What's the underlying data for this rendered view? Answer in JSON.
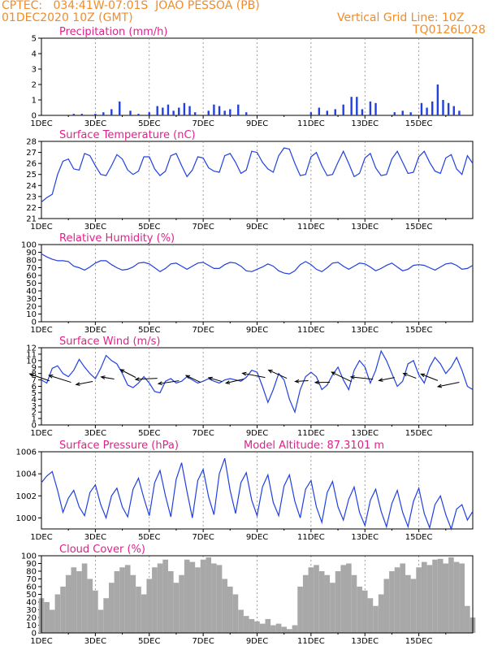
{
  "header": {
    "line1": "CPTEC:   034:41W-07:01S  JOAO PESSOA (PB)",
    "line2": "01DEC2020 10Z (GMT)",
    "grid_note": "Vertical Grid Line: 10Z",
    "model": "TQ0126L028"
  },
  "x_labels": [
    "1DEC",
    "3DEC",
    "5DEC",
    "7DEC",
    "9DEC",
    "11DEC",
    "13DEC",
    "15DEC"
  ],
  "colors": {
    "line": "#2040e0",
    "bar": "#2040e0",
    "cloud": "#a8a8a8",
    "title": "#e0218a",
    "header": "#f28c28"
  },
  "chart_data": [
    {
      "type": "bar",
      "title": "Precipitation (mm/h)",
      "ylim": [
        0,
        5
      ],
      "yticks": [
        0,
        1,
        2,
        3,
        4,
        5
      ],
      "x": [
        1.2,
        1.5,
        2.0,
        2.3,
        2.6,
        2.9,
        3.3,
        3.6,
        4.0,
        4.3,
        4.5,
        4.7,
        4.9,
        5.1,
        5.3,
        5.5,
        5.7,
        6.2,
        6.4,
        6.6,
        6.8,
        7.0,
        7.3,
        7.6,
        10.0,
        10.3,
        10.6,
        10.9,
        11.2,
        11.5,
        11.7,
        11.9,
        12.2,
        12.4,
        13.1,
        13.4,
        13.7,
        14.1,
        14.3,
        14.5,
        14.7,
        14.9,
        15.1,
        15.3,
        15.5
      ],
      "values": [
        0.1,
        0.1,
        0.1,
        0.2,
        0.4,
        0.9,
        0.3,
        0.1,
        0.2,
        0.6,
        0.5,
        0.7,
        0.3,
        0.5,
        0.8,
        0.6,
        0.2,
        0.3,
        0.7,
        0.6,
        0.3,
        0.4,
        0.7,
        0.2,
        0.2,
        0.5,
        0.3,
        0.4,
        0.7,
        1.2,
        1.2,
        0.4,
        0.9,
        0.8,
        0.2,
        0.3,
        0.2,
        0.8,
        0.5,
        0.9,
        2.0,
        1.0,
        0.8,
        0.6,
        0.3
      ]
    },
    {
      "type": "line",
      "title": "Surface Temperature (nC)",
      "ylim": [
        21,
        28
      ],
      "yticks": [
        21,
        22,
        23,
        24,
        25,
        26,
        27,
        28
      ],
      "x": [
        0,
        0.2,
        0.4,
        0.6,
        0.8,
        1.0,
        1.2,
        1.4,
        1.6,
        1.8,
        2.0,
        2.2,
        2.4,
        2.6,
        2.8,
        3.0,
        3.2,
        3.4,
        3.6,
        3.8,
        4.0,
        4.2,
        4.4,
        4.6,
        4.8,
        5.0,
        5.2,
        5.4,
        5.6,
        5.8,
        6.0,
        6.2,
        6.4,
        6.6,
        6.8,
        7.0,
        7.2,
        7.4,
        7.6,
        7.8,
        8.0,
        8.2,
        8.4,
        8.6,
        8.8,
        9.0,
        9.2,
        9.4,
        9.6,
        9.8,
        10.0,
        10.2,
        10.4,
        10.6,
        10.8,
        11.0,
        11.2,
        11.4,
        11.6,
        11.8,
        12.0,
        12.2,
        12.4,
        12.6,
        12.8,
        13.0,
        13.2,
        13.4,
        13.6,
        13.8,
        14.0,
        14.2,
        14.4,
        14.6,
        14.8,
        15.0,
        15.2,
        15.4,
        15.6,
        15.8,
        16.0
      ],
      "values": [
        22.5,
        22.9,
        23.2,
        25.0,
        26.2,
        26.4,
        25.5,
        25.4,
        26.9,
        26.7,
        25.8,
        25.0,
        24.9,
        25.8,
        26.8,
        26.4,
        25.4,
        25.0,
        25.3,
        26.6,
        26.6,
        25.5,
        24.9,
        25.3,
        26.7,
        26.9,
        25.8,
        24.8,
        25.4,
        26.6,
        26.5,
        25.6,
        25.3,
        25.2,
        26.7,
        26.9,
        26.1,
        25.1,
        25.4,
        27.1,
        27.0,
        26.1,
        25.5,
        25.2,
        26.7,
        27.4,
        27.3,
        26.0,
        24.9,
        25.0,
        26.6,
        27.0,
        25.8,
        24.9,
        25.0,
        26.1,
        27.1,
        26.0,
        24.8,
        25.1,
        26.5,
        26.9,
        25.6,
        24.9,
        25.0,
        26.4,
        27.1,
        26.1,
        25.1,
        25.2,
        26.6,
        27.1,
        26.1,
        25.3,
        25.1,
        26.5,
        26.8,
        25.5,
        25.0,
        26.7,
        26.0
      ]
    },
    {
      "type": "line",
      "title": "Relative Humidity (%)",
      "ylim": [
        0,
        100
      ],
      "yticks": [
        0,
        10,
        20,
        30,
        40,
        50,
        60,
        70,
        80,
        90,
        100
      ],
      "x": [
        0,
        0.2,
        0.4,
        0.6,
        0.8,
        1.0,
        1.2,
        1.4,
        1.6,
        1.8,
        2.0,
        2.2,
        2.4,
        2.6,
        2.8,
        3.0,
        3.2,
        3.4,
        3.6,
        3.8,
        4.0,
        4.2,
        4.4,
        4.6,
        4.8,
        5.0,
        5.2,
        5.4,
        5.6,
        5.8,
        6.0,
        6.2,
        6.4,
        6.6,
        6.8,
        7.0,
        7.2,
        7.4,
        7.6,
        7.8,
        8.0,
        8.2,
        8.4,
        8.6,
        8.8,
        9.0,
        9.2,
        9.4,
        9.6,
        9.8,
        10.0,
        10.2,
        10.4,
        10.6,
        10.8,
        11.0,
        11.2,
        11.4,
        11.6,
        11.8,
        12.0,
        12.2,
        12.4,
        12.6,
        12.8,
        13.0,
        13.2,
        13.4,
        13.6,
        13.8,
        14.0,
        14.2,
        14.4,
        14.6,
        14.8,
        15.0,
        15.2,
        15.4,
        15.6,
        15.8,
        16.0
      ],
      "values": [
        88,
        84,
        81,
        79,
        79,
        78,
        72,
        70,
        67,
        71,
        76,
        79,
        79,
        74,
        70,
        67,
        68,
        71,
        76,
        77,
        75,
        70,
        65,
        69,
        75,
        76,
        72,
        68,
        72,
        76,
        77,
        73,
        69,
        69,
        74,
        77,
        76,
        72,
        66,
        65,
        68,
        71,
        75,
        72,
        66,
        63,
        62,
        66,
        74,
        78,
        74,
        68,
        65,
        70,
        76,
        77,
        72,
        68,
        72,
        76,
        75,
        71,
        66,
        69,
        73,
        76,
        71,
        66,
        68,
        73,
        74,
        73,
        70,
        67,
        71,
        75,
        76,
        73,
        68,
        69,
        73
      ]
    },
    {
      "type": "line",
      "title": "Surface Wind (m/s)",
      "ylim": [
        0,
        12
      ],
      "yticks": [
        0,
        1,
        2,
        3,
        4,
        5,
        6,
        7,
        8,
        9,
        10,
        11,
        12
      ],
      "x": [
        0,
        0.2,
        0.4,
        0.6,
        0.8,
        1.0,
        1.2,
        1.4,
        1.6,
        1.8,
        2.0,
        2.2,
        2.4,
        2.6,
        2.8,
        3.0,
        3.2,
        3.4,
        3.6,
        3.8,
        4.0,
        4.2,
        4.4,
        4.6,
        4.8,
        5.0,
        5.2,
        5.4,
        5.6,
        5.8,
        6.0,
        6.2,
        6.4,
        6.6,
        6.8,
        7.0,
        7.2,
        7.4,
        7.6,
        7.8,
        8.0,
        8.2,
        8.4,
        8.6,
        8.8,
        9.0,
        9.2,
        9.4,
        9.6,
        9.8,
        10.0,
        10.2,
        10.4,
        10.6,
        10.8,
        11.0,
        11.2,
        11.4,
        11.6,
        11.8,
        12.0,
        12.2,
        12.4,
        12.6,
        12.8,
        13.0,
        13.2,
        13.4,
        13.6,
        13.8,
        14.0,
        14.2,
        14.4,
        14.6,
        14.8,
        15.0,
        15.2,
        15.4,
        15.6,
        15.8,
        16.0
      ],
      "values": [
        7.0,
        6.5,
        8.8,
        9.2,
        8.0,
        7.5,
        8.5,
        10.2,
        9.0,
        8.0,
        7.2,
        8.8,
        10.8,
        10.0,
        9.5,
        8.0,
        6.2,
        5.8,
        6.5,
        7.5,
        6.5,
        5.2,
        5.0,
        6.8,
        7.2,
        6.5,
        6.8,
        7.5,
        7.0,
        6.5,
        6.8,
        7.2,
        6.8,
        6.5,
        7.0,
        7.2,
        7.0,
        6.8,
        7.4,
        8.5,
        8.2,
        6.0,
        3.5,
        5.5,
        8.0,
        7.0,
        4.0,
        2.0,
        5.5,
        7.5,
        8.2,
        7.5,
        5.5,
        6.2,
        7.8,
        9.0,
        7.0,
        5.5,
        8.5,
        10.0,
        9.0,
        6.5,
        8.5,
        11.5,
        10.0,
        8.0,
        6.0,
        6.8,
        9.5,
        10.0,
        7.8,
        6.5,
        9.0,
        10.5,
        9.5,
        8.0,
        9.0,
        10.5,
        8.5,
        6.0,
        5.5
      ]
    },
    {
      "type": "line",
      "title": "Surface Pressure (hPa)",
      "annotation": "Model Altitude: 87.3101 m",
      "ylim": [
        999,
        1006
      ],
      "yticks": [
        1000,
        1002,
        1004,
        1006
      ],
      "x": [
        0,
        0.2,
        0.4,
        0.6,
        0.8,
        1.0,
        1.2,
        1.4,
        1.6,
        1.8,
        2.0,
        2.2,
        2.4,
        2.6,
        2.8,
        3.0,
        3.2,
        3.4,
        3.6,
        3.8,
        4.0,
        4.2,
        4.4,
        4.6,
        4.8,
        5.0,
        5.2,
        5.4,
        5.6,
        5.8,
        6.0,
        6.2,
        6.4,
        6.6,
        6.8,
        7.0,
        7.2,
        7.4,
        7.6,
        7.8,
        8.0,
        8.2,
        8.4,
        8.6,
        8.8,
        9.0,
        9.2,
        9.4,
        9.6,
        9.8,
        10.0,
        10.2,
        10.4,
        10.6,
        10.8,
        11.0,
        11.2,
        11.4,
        11.6,
        11.8,
        12.0,
        12.2,
        12.4,
        12.6,
        12.8,
        13.0,
        13.2,
        13.4,
        13.6,
        13.8,
        14.0,
        14.2,
        14.4,
        14.6,
        14.8,
        15.0,
        15.2,
        15.4,
        15.6,
        15.8,
        16.0
      ],
      "values": [
        1003.2,
        1003.8,
        1004.2,
        1002.5,
        1000.5,
        1001.8,
        1002.5,
        1001.0,
        1000.2,
        1002.3,
        1003.0,
        1001.2,
        1000.0,
        1002.0,
        1002.7,
        1001.0,
        1000.1,
        1002.6,
        1003.6,
        1001.8,
        1000.2,
        1003.2,
        1004.3,
        1002.0,
        1000.1,
        1003.5,
        1005.0,
        1002.4,
        1000.0,
        1003.4,
        1004.4,
        1001.9,
        1000.3,
        1004.0,
        1005.4,
        1002.5,
        1000.4,
        1003.2,
        1004.1,
        1001.6,
        1000.2,
        1002.8,
        1003.9,
        1001.4,
        1000.2,
        1002.9,
        1003.9,
        1001.5,
        1000.0,
        1002.6,
        1003.4,
        1001.0,
        999.6,
        1002.3,
        1003.3,
        1001.0,
        999.8,
        1001.7,
        1002.8,
        1000.5,
        999.3,
        1001.6,
        1002.6,
        1000.6,
        999.2,
        1001.3,
        1002.5,
        1000.5,
        999.2,
        1001.5,
        1002.7,
        1000.4,
        999.1,
        1001.2,
        1002.0,
        1000.3,
        999.0,
        1000.8,
        1001.2,
        999.8,
        1000.6
      ]
    },
    {
      "type": "area",
      "title": "Cloud Cover (%)",
      "ylim": [
        0,
        100
      ],
      "yticks": [
        0,
        10,
        20,
        30,
        40,
        50,
        60,
        70,
        80,
        90,
        100
      ],
      "x": [
        0,
        0.2,
        0.4,
        0.6,
        0.8,
        1.0,
        1.2,
        1.4,
        1.6,
        1.8,
        2.0,
        2.2,
        2.4,
        2.6,
        2.8,
        3.0,
        3.2,
        3.4,
        3.6,
        3.8,
        4.0,
        4.2,
        4.4,
        4.6,
        4.8,
        5.0,
        5.2,
        5.4,
        5.6,
        5.8,
        6.0,
        6.2,
        6.4,
        6.6,
        6.8,
        7.0,
        7.2,
        7.4,
        7.6,
        7.8,
        8.0,
        8.2,
        8.4,
        8.6,
        8.8,
        9.0,
        9.2,
        9.4,
        9.6,
        9.8,
        10.0,
        10.2,
        10.4,
        10.6,
        10.8,
        11.0,
        11.2,
        11.4,
        11.6,
        11.8,
        12.0,
        12.2,
        12.4,
        12.6,
        12.8,
        13.0,
        13.2,
        13.4,
        13.6,
        13.8,
        14.0,
        14.2,
        14.4,
        14.6,
        14.8,
        15.0,
        15.2,
        15.4,
        15.6,
        15.8,
        16.0
      ],
      "values": [
        45,
        40,
        30,
        50,
        60,
        75,
        85,
        80,
        90,
        70,
        55,
        30,
        45,
        65,
        80,
        85,
        88,
        75,
        60,
        50,
        70,
        85,
        90,
        95,
        80,
        65,
        75,
        95,
        92,
        85,
        95,
        98,
        90,
        88,
        70,
        60,
        50,
        30,
        22,
        18,
        15,
        12,
        18,
        10,
        12,
        8,
        5,
        10,
        60,
        75,
        85,
        88,
        80,
        75,
        65,
        80,
        88,
        90,
        75,
        60,
        55,
        45,
        35,
        50,
        70,
        80,
        85,
        90,
        75,
        70,
        85,
        92,
        88,
        95,
        96,
        90,
        98,
        92,
        90,
        35,
        20
      ]
    }
  ]
}
